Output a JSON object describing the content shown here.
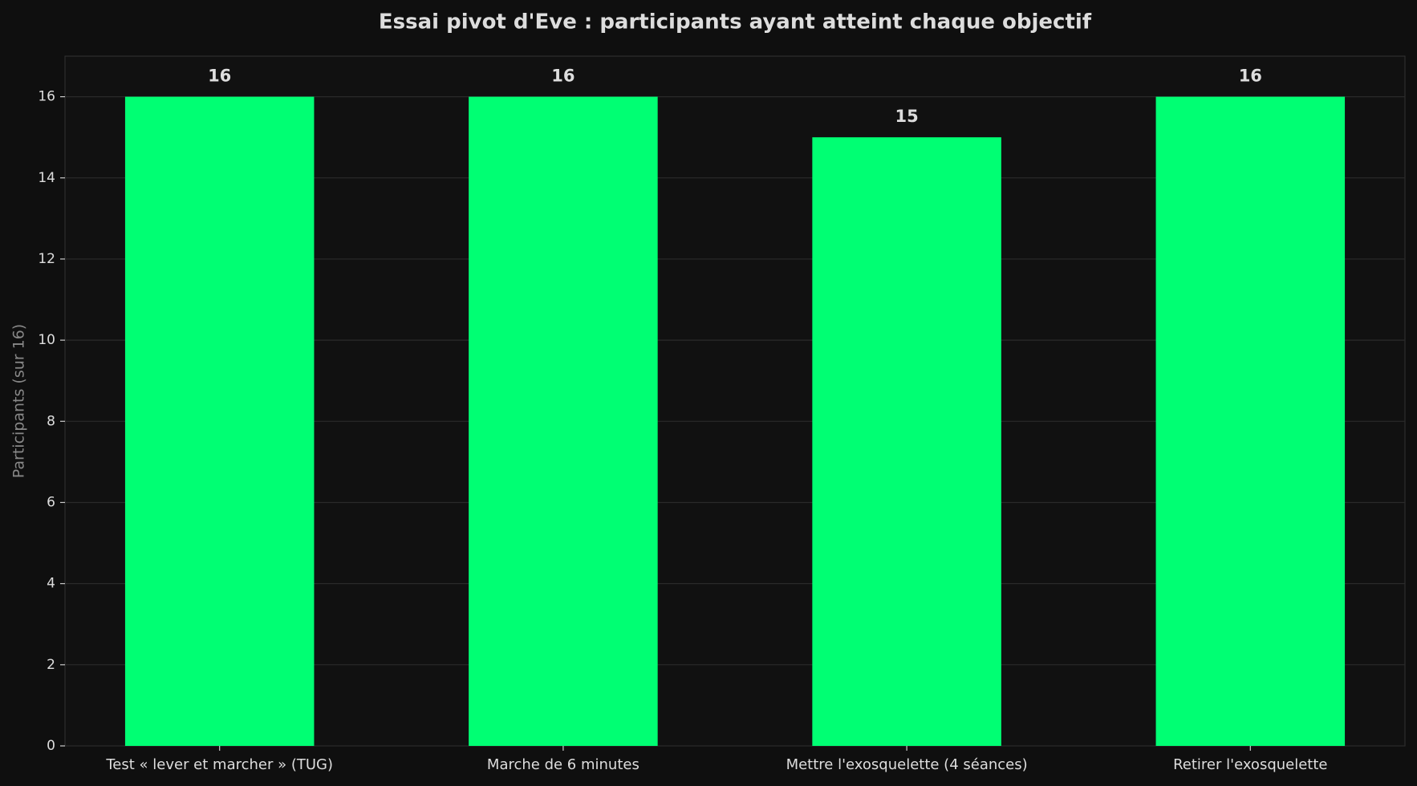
{
  "chart_data": {
    "type": "bar",
    "title": "Essai pivot d'Eve : participants ayant atteint chaque objectif",
    "y_label": "Participants (sur 16)",
    "categories": [
      "Test « lever et marcher » (TUG)",
      "Marche de 6 minutes",
      "Mettre l'exosquelette (4 séances)",
      "Retirer l'exosquelette"
    ],
    "values": [
      16,
      16,
      15,
      16
    ],
    "color": "#00ff73",
    "ylim": [
      0,
      17
    ],
    "yticks": [
      0,
      2,
      4,
      6,
      8,
      10,
      12,
      14,
      16
    ],
    "grid": true
  }
}
